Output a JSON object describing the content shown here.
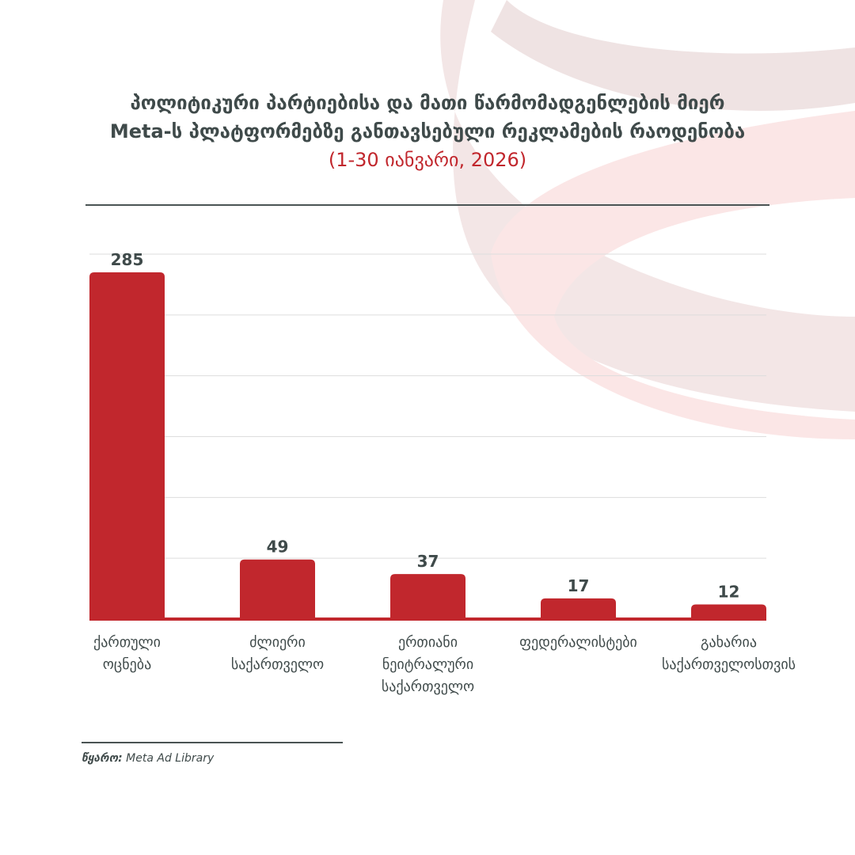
{
  "chart_data": {
    "type": "bar",
    "title": "პოლიტიკური პარტიებისა და მათი წარმომადგენლების მიერ Meta-ს პლატფორმებზე განთავსებული რეკლამების რაოდენობა",
    "title_line1": "პოლიტიკური პარტიებისა და მათი წარმომადგენლების მიერ",
    "title_line2": "Meta-ს პლატფორმებზე განთავსებული რეკლამების რაოდენობა",
    "subtitle": "(1-30 იანვარი, 2026)",
    "categories": [
      "ქართული\nოცნება",
      "ძლიერი\nსაქართველო",
      "ერთიანი\nნეიტრალური\nსაქართველო",
      "ფედერალისტები",
      "გახარია\nსაქართველოსთვის"
    ],
    "values": [
      285,
      49,
      37,
      17,
      12
    ],
    "value_labels": [
      "285",
      "49",
      "37",
      "17",
      "12"
    ],
    "xlabel": "",
    "ylabel": "",
    "ylim": [
      0,
      300
    ],
    "grid_step": 50,
    "grid": true,
    "bar_color": "#c1272d"
  },
  "source": {
    "label": "წყარო:",
    "text": "Meta Ad Library"
  }
}
